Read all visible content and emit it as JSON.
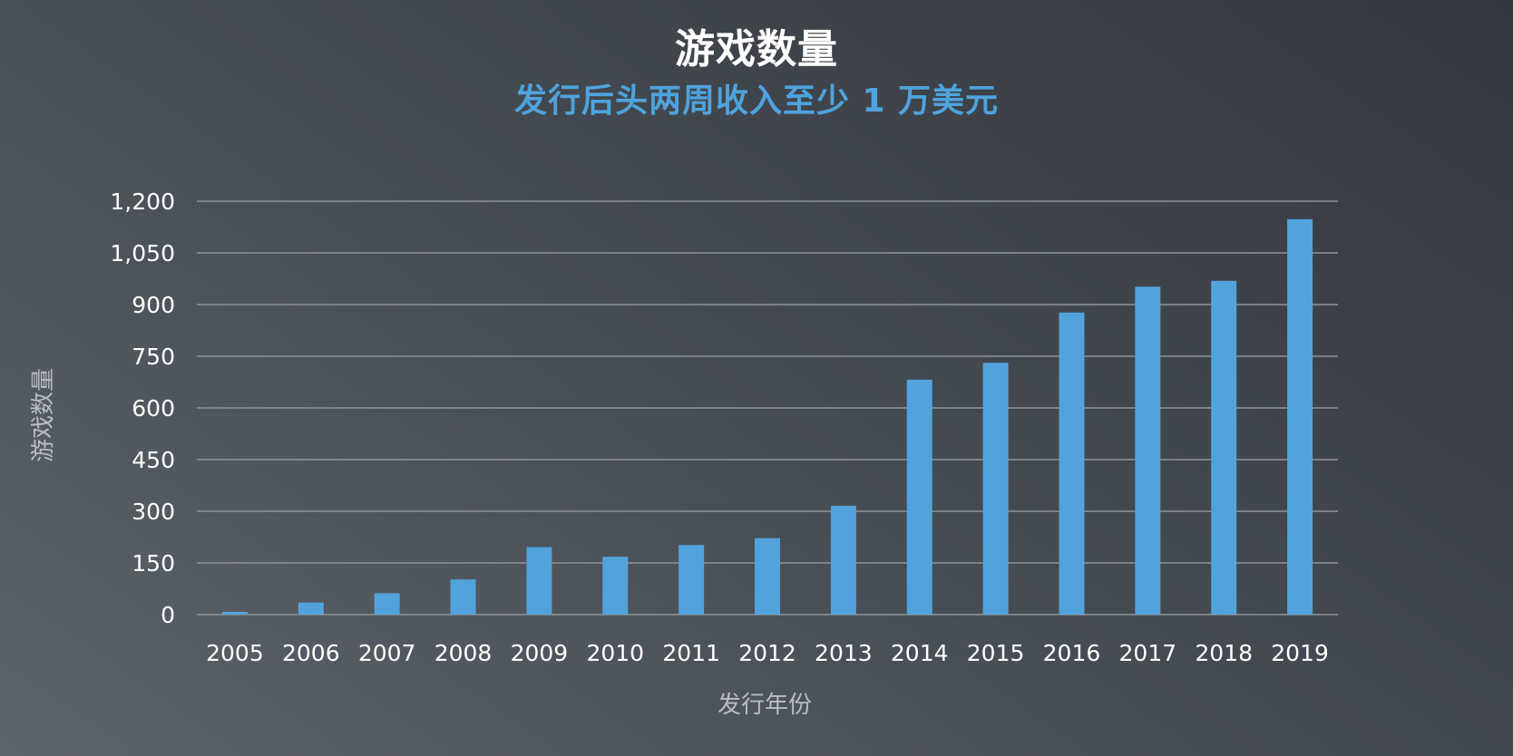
{
  "chart_data": {
    "type": "bar",
    "title": "游戏数量",
    "subtitle": "发行后头两周收入至少 1 万美元",
    "xlabel": "发行年份",
    "ylabel": "游戏数量",
    "categories": [
      "2005",
      "2006",
      "2007",
      "2008",
      "2009",
      "2010",
      "2011",
      "2012",
      "2013",
      "2014",
      "2015",
      "2016",
      "2017",
      "2018",
      "2019"
    ],
    "values": [
      8,
      35,
      62,
      102,
      196,
      168,
      202,
      222,
      316,
      682,
      731,
      877,
      952,
      969,
      1148
    ],
    "ylim": [
      0,
      1200
    ],
    "yticks": [
      0,
      150,
      300,
      450,
      600,
      750,
      900,
      1050,
      1200
    ],
    "ytick_labels": [
      "0",
      "150",
      "300",
      "450",
      "600",
      "750",
      "900",
      "1,050",
      "1,200"
    ],
    "grid": true,
    "legend": "none",
    "colors": {
      "bar": "#52a3dc",
      "subtitle": "#4fa3dd",
      "grid": "#8e9398"
    }
  }
}
